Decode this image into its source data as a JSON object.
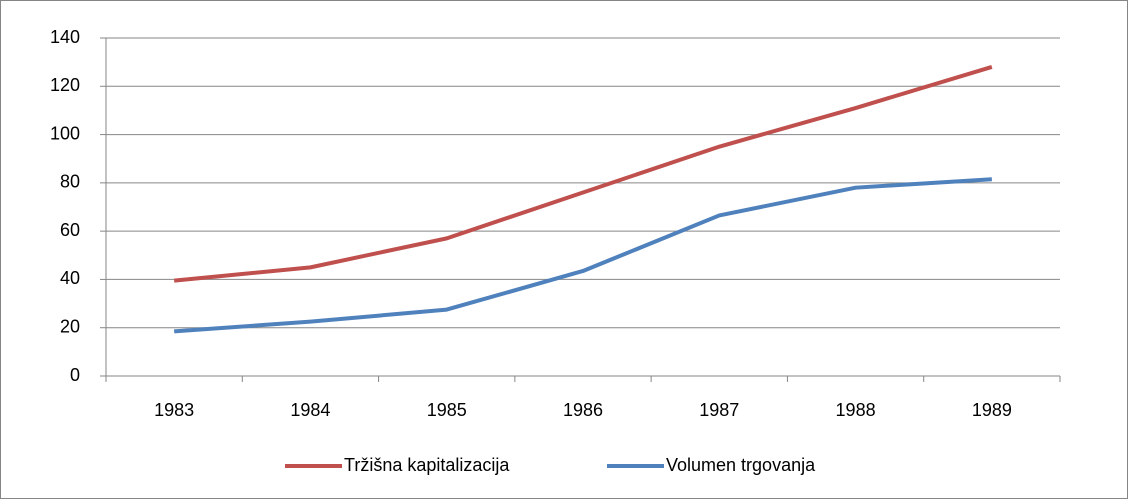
{
  "chart_data": {
    "type": "line",
    "categories": [
      "1983",
      "1984",
      "1985",
      "1986",
      "1987",
      "1988",
      "1989"
    ],
    "series": [
      {
        "name": "Tržišna kapitalizacija",
        "color": "#c0504d",
        "values": [
          39.5,
          45,
          57,
          76,
          95,
          111,
          128
        ]
      },
      {
        "name": "Volumen trgovanja",
        "color": "#4f81bd",
        "values": [
          18.5,
          22.5,
          27.5,
          43.5,
          66.5,
          78,
          81.5
        ]
      }
    ],
    "ylim": [
      0,
      140
    ],
    "yticks": [
      0,
      20,
      40,
      60,
      80,
      100,
      120,
      140
    ],
    "grid": true,
    "legend": "bottom"
  }
}
